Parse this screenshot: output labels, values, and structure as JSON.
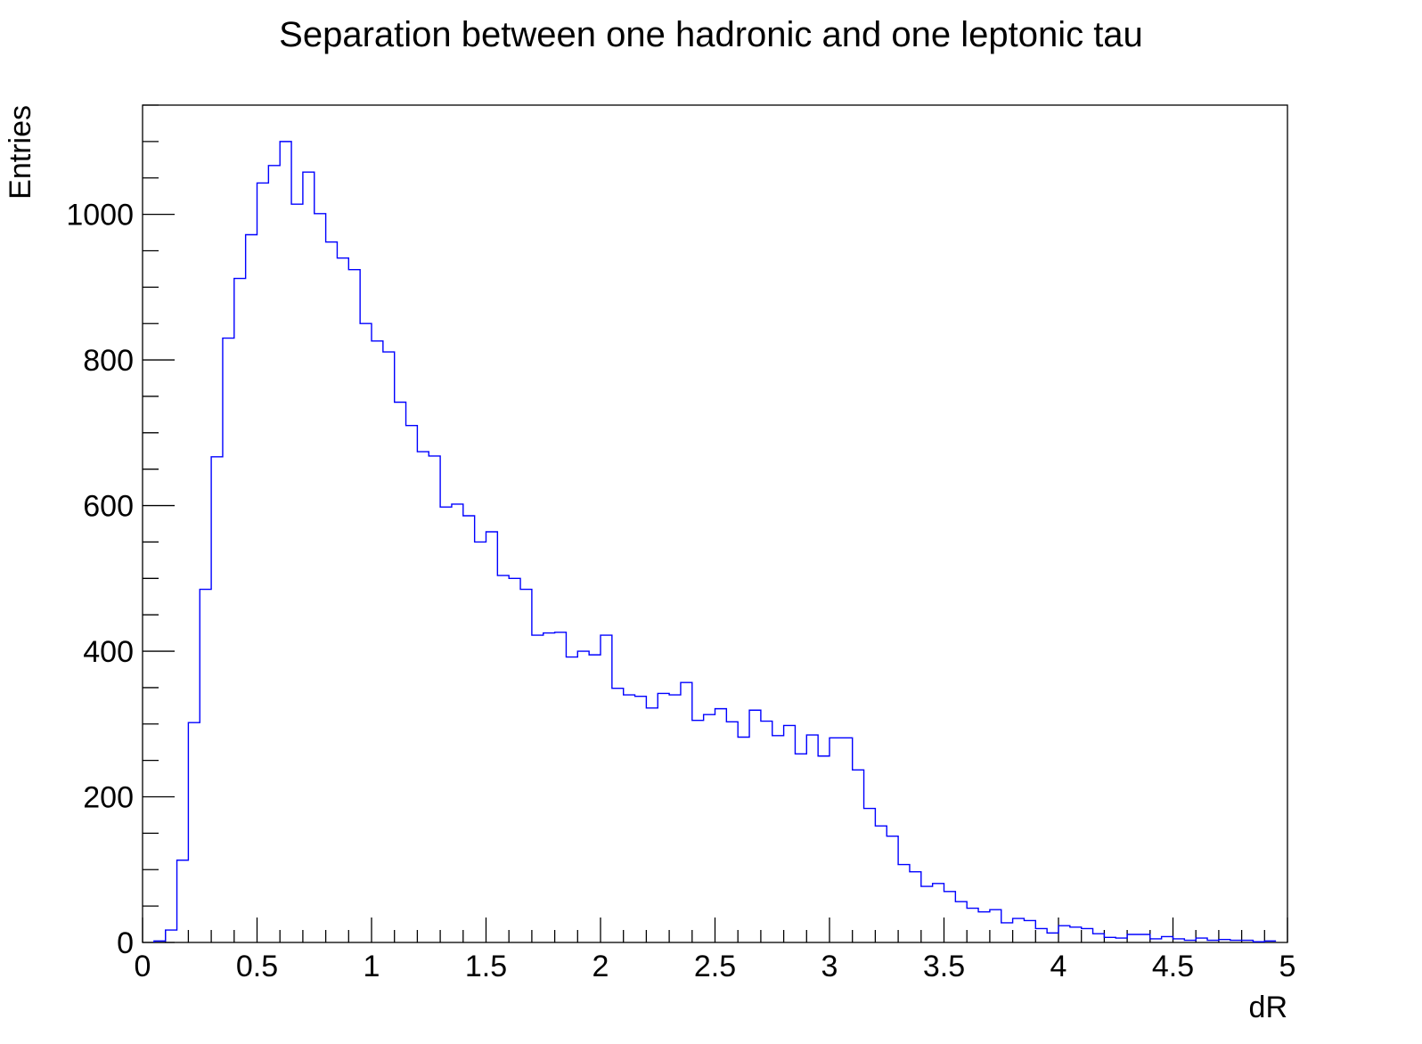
{
  "chart_data": {
    "type": "histogram",
    "title": "Separation between one hadronic and one leptonic tau",
    "xlabel": "dR",
    "ylabel": "Entries",
    "xlim": [
      0,
      5
    ],
    "ylim": [
      0,
      1150
    ],
    "bin_width": 0.05,
    "x_ticks": [
      {
        "value": 0,
        "label": "0"
      },
      {
        "value": 0.5,
        "label": "0.5"
      },
      {
        "value": 1,
        "label": "1"
      },
      {
        "value": 1.5,
        "label": "1.5"
      },
      {
        "value": 2,
        "label": "2"
      },
      {
        "value": 2.5,
        "label": "2.5"
      },
      {
        "value": 3,
        "label": "3"
      },
      {
        "value": 3.5,
        "label": "3.5"
      },
      {
        "value": 4,
        "label": "4"
      },
      {
        "value": 4.5,
        "label": "4.5"
      },
      {
        "value": 5,
        "label": "5"
      }
    ],
    "y_ticks": [
      {
        "value": 0,
        "label": "0"
      },
      {
        "value": 200,
        "label": "200"
      },
      {
        "value": 400,
        "label": "400"
      },
      {
        "value": 600,
        "label": "600"
      },
      {
        "value": 800,
        "label": "800"
      },
      {
        "value": 1000,
        "label": "1000"
      }
    ],
    "line_color": "#0000ff",
    "bins": [
      {
        "x": 0.05,
        "y": 2
      },
      {
        "x": 0.1,
        "y": 17
      },
      {
        "x": 0.15,
        "y": 113
      },
      {
        "x": 0.2,
        "y": 302
      },
      {
        "x": 0.25,
        "y": 485
      },
      {
        "x": 0.3,
        "y": 667
      },
      {
        "x": 0.35,
        "y": 830
      },
      {
        "x": 0.4,
        "y": 912
      },
      {
        "x": 0.45,
        "y": 972
      },
      {
        "x": 0.5,
        "y": 1043
      },
      {
        "x": 0.55,
        "y": 1067
      },
      {
        "x": 0.6,
        "y": 1100
      },
      {
        "x": 0.65,
        "y": 1014
      },
      {
        "x": 0.7,
        "y": 1058
      },
      {
        "x": 0.75,
        "y": 1001
      },
      {
        "x": 0.8,
        "y": 962
      },
      {
        "x": 0.85,
        "y": 940
      },
      {
        "x": 0.9,
        "y": 924
      },
      {
        "x": 0.95,
        "y": 850
      },
      {
        "x": 1.0,
        "y": 826
      },
      {
        "x": 1.05,
        "y": 811
      },
      {
        "x": 1.1,
        "y": 742
      },
      {
        "x": 1.15,
        "y": 710
      },
      {
        "x": 1.2,
        "y": 674
      },
      {
        "x": 1.25,
        "y": 668
      },
      {
        "x": 1.3,
        "y": 598
      },
      {
        "x": 1.35,
        "y": 602
      },
      {
        "x": 1.4,
        "y": 586
      },
      {
        "x": 1.45,
        "y": 550
      },
      {
        "x": 1.5,
        "y": 564
      },
      {
        "x": 1.55,
        "y": 504
      },
      {
        "x": 1.6,
        "y": 500
      },
      {
        "x": 1.65,
        "y": 485
      },
      {
        "x": 1.7,
        "y": 422
      },
      {
        "x": 1.75,
        "y": 425
      },
      {
        "x": 1.8,
        "y": 426
      },
      {
        "x": 1.85,
        "y": 392
      },
      {
        "x": 1.9,
        "y": 400
      },
      {
        "x": 1.95,
        "y": 395
      },
      {
        "x": 2.0,
        "y": 422
      },
      {
        "x": 2.05,
        "y": 349
      },
      {
        "x": 2.1,
        "y": 340
      },
      {
        "x": 2.15,
        "y": 338
      },
      {
        "x": 2.2,
        "y": 322
      },
      {
        "x": 2.25,
        "y": 342
      },
      {
        "x": 2.3,
        "y": 340
      },
      {
        "x": 2.35,
        "y": 357
      },
      {
        "x": 2.4,
        "y": 305
      },
      {
        "x": 2.45,
        "y": 313
      },
      {
        "x": 2.5,
        "y": 321
      },
      {
        "x": 2.55,
        "y": 303
      },
      {
        "x": 2.6,
        "y": 282
      },
      {
        "x": 2.65,
        "y": 319
      },
      {
        "x": 2.7,
        "y": 304
      },
      {
        "x": 2.75,
        "y": 284
      },
      {
        "x": 2.8,
        "y": 298
      },
      {
        "x": 2.85,
        "y": 259
      },
      {
        "x": 2.9,
        "y": 285
      },
      {
        "x": 2.95,
        "y": 256
      },
      {
        "x": 3.0,
        "y": 281
      },
      {
        "x": 3.05,
        "y": 281
      },
      {
        "x": 3.1,
        "y": 237
      },
      {
        "x": 3.15,
        "y": 184
      },
      {
        "x": 3.2,
        "y": 160
      },
      {
        "x": 3.25,
        "y": 146
      },
      {
        "x": 3.3,
        "y": 107
      },
      {
        "x": 3.35,
        "y": 97
      },
      {
        "x": 3.4,
        "y": 77
      },
      {
        "x": 3.45,
        "y": 81
      },
      {
        "x": 3.5,
        "y": 70
      },
      {
        "x": 3.55,
        "y": 56
      },
      {
        "x": 3.6,
        "y": 47
      },
      {
        "x": 3.65,
        "y": 42
      },
      {
        "x": 3.7,
        "y": 45
      },
      {
        "x": 3.75,
        "y": 27
      },
      {
        "x": 3.8,
        "y": 33
      },
      {
        "x": 3.85,
        "y": 30
      },
      {
        "x": 3.9,
        "y": 19
      },
      {
        "x": 3.95,
        "y": 13
      },
      {
        "x": 4.0,
        "y": 23
      },
      {
        "x": 4.05,
        "y": 21
      },
      {
        "x": 4.1,
        "y": 19
      },
      {
        "x": 4.15,
        "y": 12
      },
      {
        "x": 4.2,
        "y": 7
      },
      {
        "x": 4.25,
        "y": 6
      },
      {
        "x": 4.3,
        "y": 11
      },
      {
        "x": 4.35,
        "y": 11
      },
      {
        "x": 4.4,
        "y": 5
      },
      {
        "x": 4.45,
        "y": 8
      },
      {
        "x": 4.5,
        "y": 5
      },
      {
        "x": 4.55,
        "y": 3
      },
      {
        "x": 4.6,
        "y": 6
      },
      {
        "x": 4.65,
        "y": 3
      },
      {
        "x": 4.7,
        "y": 4
      },
      {
        "x": 4.75,
        "y": 3
      },
      {
        "x": 4.8,
        "y": 3
      },
      {
        "x": 4.85,
        "y": 1
      },
      {
        "x": 4.9,
        "y": 2
      }
    ]
  }
}
